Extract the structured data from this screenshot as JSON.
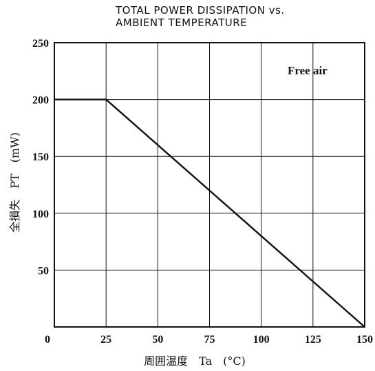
{
  "chart_data": {
    "type": "line",
    "title": [
      "TOTAL POWER DISSIPATION vs.",
      "AMBIENT TEMPERATURE"
    ],
    "xlabel": "周囲温度　Ta　(°C)",
    "ylabel": "全損失　PT　(mW)",
    "xlim": [
      0,
      150
    ],
    "ylim": [
      0,
      250
    ],
    "x_ticks": [
      "0",
      "25",
      "50",
      "75",
      "100",
      "125",
      "150"
    ],
    "y_ticks": [
      "50",
      "100",
      "150",
      "200",
      "250"
    ],
    "grid": true,
    "annotation": "Free air",
    "series": [
      {
        "x": [
          0,
          25,
          150
        ],
        "y": [
          200,
          200,
          0
        ]
      }
    ]
  }
}
